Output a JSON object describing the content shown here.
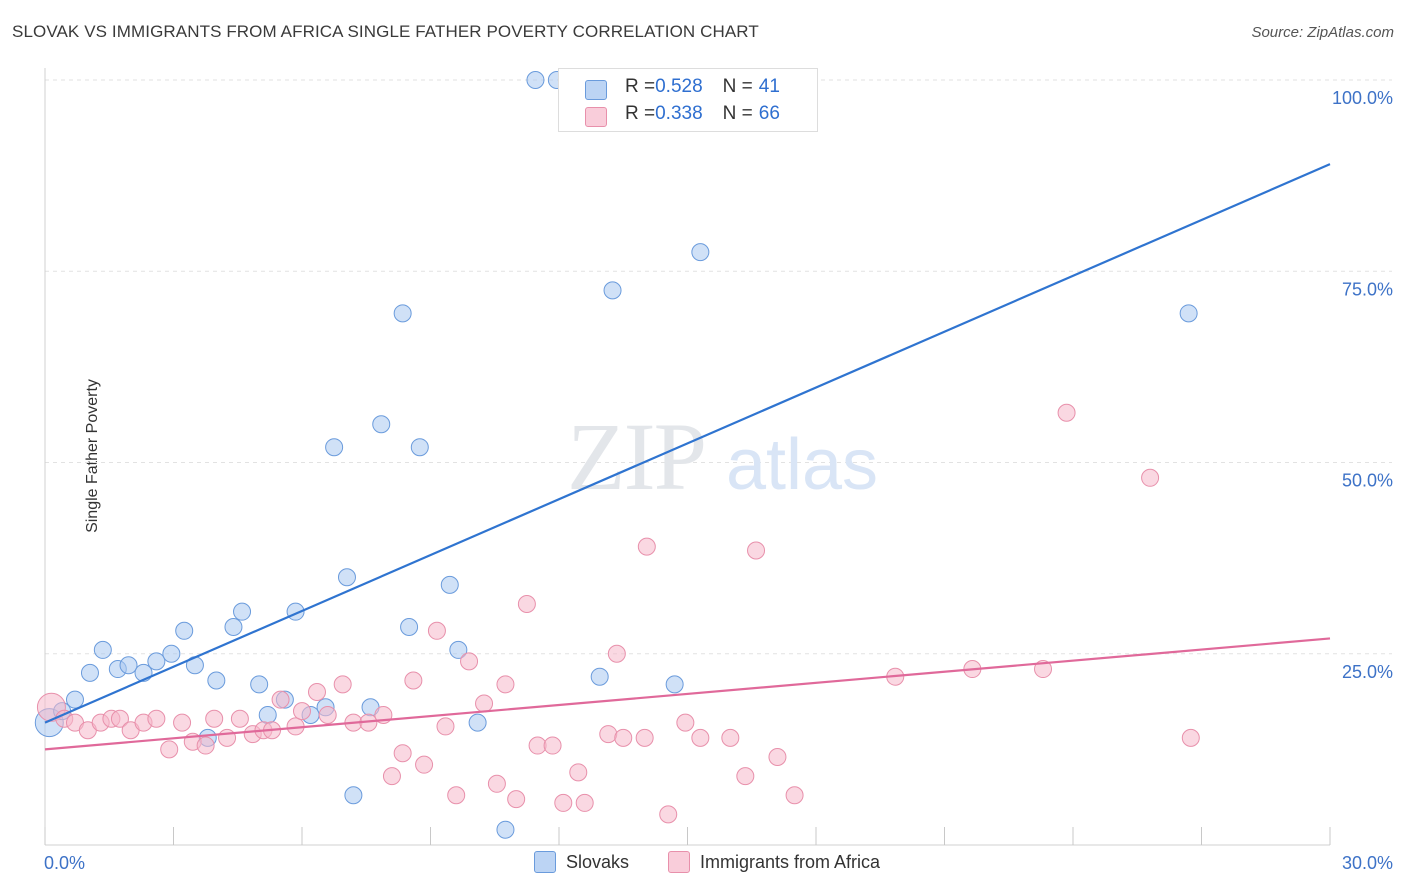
{
  "title": "SLOVAK VS IMMIGRANTS FROM AFRICA SINGLE FATHER POVERTY CORRELATION CHART",
  "source": "Source: ZipAtlas.com",
  "watermark": {
    "zip": "ZIP",
    "atlas": "atlas"
  },
  "legend": {
    "rows": [
      {
        "r_label": "R = ",
        "r_value": "0.528",
        "n_label": "N = ",
        "n_value": "41"
      },
      {
        "r_label": "R = ",
        "r_value": "0.338",
        "n_label": "N = ",
        "n_value": "66"
      }
    ]
  },
  "chart_data": {
    "type": "scatter",
    "ylabel": "Single Father Poverty",
    "xlim": [
      0,
      30
    ],
    "ylim": [
      0,
      100
    ],
    "x_tick_labels": [
      {
        "value": 0,
        "label": "0.0%"
      },
      {
        "value": 30,
        "label": "30.0%"
      }
    ],
    "y_tick_labels": [
      {
        "value": 25,
        "label": "25.0%"
      },
      {
        "value": 50,
        "label": "50.0%"
      },
      {
        "value": 75,
        "label": "75.0%"
      },
      {
        "value": 100,
        "label": "100.0%"
      }
    ],
    "grid": true,
    "legend_position": "top-center",
    "series": [
      {
        "name": "Slovaks",
        "color": "#a9c8f0",
        "stroke": "#6a9bdc",
        "line_color": "#2f74d0",
        "trend": {
          "x": [
            0,
            30
          ],
          "y": [
            16.0,
            89.0
          ]
        },
        "points": [
          [
            0.1,
            16.0
          ],
          [
            0.4,
            17.5
          ],
          [
            0.7,
            19.0
          ],
          [
            1.05,
            22.5
          ],
          [
            1.35,
            25.5
          ],
          [
            1.7,
            23.0
          ],
          [
            1.95,
            23.5
          ],
          [
            2.3,
            22.5
          ],
          [
            2.6,
            24.0
          ],
          [
            2.95,
            25.0
          ],
          [
            3.25,
            28.0
          ],
          [
            3.5,
            23.5
          ],
          [
            3.8,
            14.0
          ],
          [
            4.0,
            21.5
          ],
          [
            4.4,
            28.5
          ],
          [
            4.6,
            30.5
          ],
          [
            5.0,
            21.0
          ],
          [
            5.2,
            17.0
          ],
          [
            5.6,
            19.0
          ],
          [
            5.85,
            30.5
          ],
          [
            6.2,
            17.0
          ],
          [
            6.55,
            18.0
          ],
          [
            6.75,
            52.0
          ],
          [
            7.05,
            35.0
          ],
          [
            7.2,
            6.5
          ],
          [
            7.6,
            18.0
          ],
          [
            7.85,
            55.0
          ],
          [
            8.35,
            69.5
          ],
          [
            8.5,
            28.5
          ],
          [
            8.75,
            52.0
          ],
          [
            9.45,
            34.0
          ],
          [
            9.65,
            25.5
          ],
          [
            10.1,
            16.0
          ],
          [
            10.75,
            2.0
          ],
          [
            11.45,
            100.0
          ],
          [
            11.95,
            100.0
          ],
          [
            12.95,
            22.0
          ],
          [
            13.25,
            72.5
          ],
          [
            14.7,
            21.0
          ],
          [
            15.3,
            77.5
          ],
          [
            26.7,
            69.5
          ]
        ]
      },
      {
        "name": "Immigrants from Africa",
        "color": "#f6b8cb",
        "stroke": "#e890ab",
        "line_color": "#e0699a",
        "trend": {
          "x": [
            0,
            30
          ],
          "y": [
            12.5,
            27.0
          ]
        },
        "points": [
          [
            0.15,
            18.0
          ],
          [
            0.45,
            16.5
          ],
          [
            0.7,
            16.0
          ],
          [
            1.0,
            15.0
          ],
          [
            1.3,
            16.0
          ],
          [
            1.55,
            16.5
          ],
          [
            1.75,
            16.5
          ],
          [
            2.0,
            15.0
          ],
          [
            2.3,
            16.0
          ],
          [
            2.6,
            16.5
          ],
          [
            2.9,
            12.5
          ],
          [
            3.2,
            16.0
          ],
          [
            3.45,
            13.5
          ],
          [
            3.75,
            13.0
          ],
          [
            3.95,
            16.5
          ],
          [
            4.25,
            14.0
          ],
          [
            4.55,
            16.5
          ],
          [
            4.85,
            14.5
          ],
          [
            5.1,
            15.0
          ],
          [
            5.3,
            15.0
          ],
          [
            5.5,
            19.0
          ],
          [
            5.85,
            15.5
          ],
          [
            6.0,
            17.5
          ],
          [
            6.35,
            20.0
          ],
          [
            6.6,
            17.0
          ],
          [
            6.95,
            21.0
          ],
          [
            7.2,
            16.0
          ],
          [
            7.55,
            16.0
          ],
          [
            7.9,
            17.0
          ],
          [
            8.1,
            9.0
          ],
          [
            8.35,
            12.0
          ],
          [
            8.6,
            21.5
          ],
          [
            8.85,
            10.5
          ],
          [
            9.15,
            28.0
          ],
          [
            9.35,
            15.5
          ],
          [
            9.6,
            6.5
          ],
          [
            9.9,
            24.0
          ],
          [
            10.25,
            18.5
          ],
          [
            10.55,
            8.0
          ],
          [
            10.75,
            21.0
          ],
          [
            11.0,
            6.0
          ],
          [
            11.25,
            31.5
          ],
          [
            11.5,
            13.0
          ],
          [
            11.85,
            13.0
          ],
          [
            12.1,
            5.5
          ],
          [
            12.45,
            9.5
          ],
          [
            12.6,
            5.5
          ],
          [
            13.15,
            14.5
          ],
          [
            13.35,
            25.0
          ],
          [
            13.5,
            14.0
          ],
          [
            14.0,
            14.0
          ],
          [
            14.05,
            39.0
          ],
          [
            14.55,
            4.0
          ],
          [
            14.95,
            16.0
          ],
          [
            15.3,
            14.0
          ],
          [
            16.0,
            14.0
          ],
          [
            16.35,
            9.0
          ],
          [
            16.6,
            38.5
          ],
          [
            17.1,
            11.5
          ],
          [
            17.5,
            6.5
          ],
          [
            19.85,
            22.0
          ],
          [
            21.65,
            23.0
          ],
          [
            23.3,
            23.0
          ],
          [
            23.85,
            56.5
          ],
          [
            25.8,
            48.0
          ],
          [
            26.75,
            14.0
          ]
        ]
      }
    ]
  }
}
